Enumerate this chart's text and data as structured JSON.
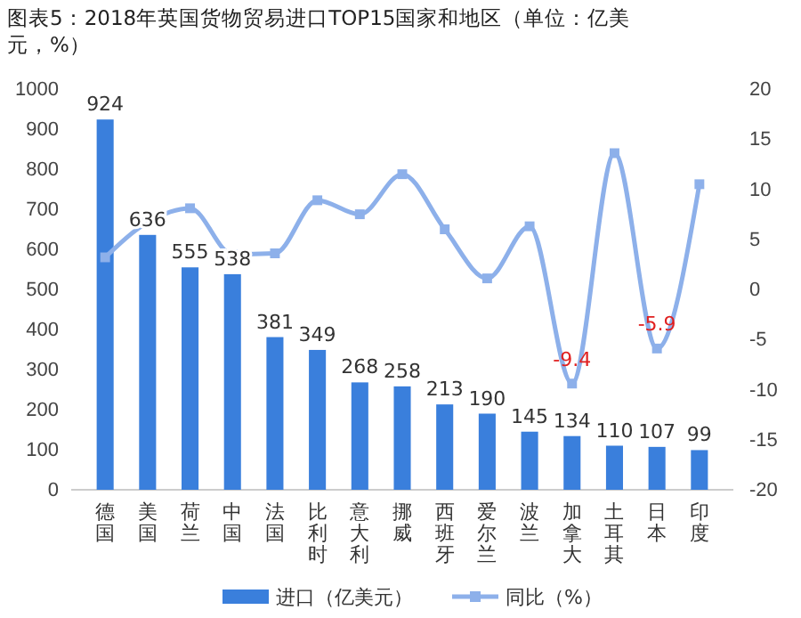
{
  "chart_data": {
    "type": "bar",
    "title": "图表5：2018年英国货物贸易进口TOP15国家和地区（单位：亿美元，%）",
    "categories": [
      "德国",
      "美国",
      "荷兰",
      "中国",
      "法国",
      "比利时",
      "意大利",
      "挪威",
      "西班牙",
      "爱尔兰",
      "波兰",
      "加拿大",
      "土耳其",
      "日本",
      "印度"
    ],
    "series": [
      {
        "name": "进口（亿美元）",
        "color": "#3a7fdc",
        "values": [
          924,
          636,
          555,
          538,
          381,
          349,
          268,
          258,
          213,
          190,
          145,
          134,
          110,
          107,
          99
        ],
        "value_labels": [
          "924",
          "636",
          "555",
          "538",
          "381",
          "349",
          "268",
          "258",
          "213",
          "190",
          "145",
          "134",
          "110",
          "107",
          "99"
        ]
      },
      {
        "name": "同比（%）",
        "type": "line",
        "axis": "y2",
        "color": "#8db0ea",
        "marker": "square",
        "values": [
          3.2,
          6.7,
          8.1,
          3.5,
          3.6,
          8.9,
          7.5,
          11.5,
          6.0,
          1.1,
          6.3,
          -9.4,
          13.6,
          -5.9,
          10.5
        ],
        "value_labels": [
          null,
          null,
          null,
          null,
          null,
          null,
          null,
          null,
          null,
          null,
          null,
          "-9.4",
          null,
          "-5.9",
          null
        ]
      }
    ],
    "ylim": [
      0,
      1000
    ],
    "yticks": [
      0,
      100,
      200,
      300,
      400,
      500,
      600,
      700,
      800,
      900,
      1000
    ],
    "y2lim": [
      -20,
      20
    ],
    "y2ticks": [
      -20,
      -15,
      -10,
      -5,
      0,
      5,
      10,
      15,
      20
    ],
    "grid": false,
    "legend": "bottom"
  }
}
